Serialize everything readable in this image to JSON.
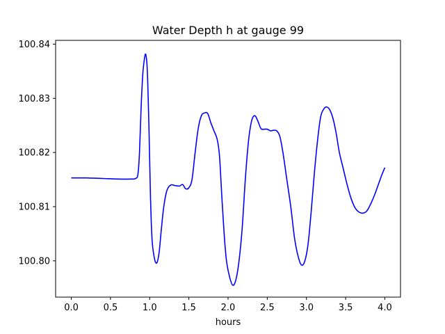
{
  "chart_data": {
    "type": "line",
    "title": "Water Depth h at gauge 99",
    "xlabel": "hours",
    "ylabel": "",
    "xlim": [
      -0.2,
      4.2
    ],
    "ylim": [
      100.7933,
      100.8407
    ],
    "xticks": [
      0.0,
      0.5,
      1.0,
      1.5,
      2.0,
      2.5,
      3.0,
      3.5,
      4.0
    ],
    "xtick_labels": [
      "0.0",
      "0.5",
      "1.0",
      "1.5",
      "2.0",
      "2.5",
      "3.0",
      "3.5",
      "4.0"
    ],
    "yticks": [
      100.8,
      100.81,
      100.82,
      100.83,
      100.84
    ],
    "ytick_labels": [
      "100.80",
      "100.81",
      "100.82",
      "100.83",
      "100.84"
    ],
    "grid": false,
    "series": [
      {
        "color": "#0000ff",
        "points": [
          [
            0.0,
            100.8153
          ],
          [
            0.2,
            100.8153
          ],
          [
            0.4,
            100.8152
          ],
          [
            0.6,
            100.8151
          ],
          [
            0.75,
            100.8151
          ],
          [
            0.82,
            100.8152
          ],
          [
            0.85,
            100.816
          ],
          [
            0.87,
            100.82
          ],
          [
            0.89,
            100.828
          ],
          [
            0.91,
            100.834
          ],
          [
            0.93,
            100.837
          ],
          [
            0.95,
            100.8381
          ],
          [
            0.97,
            100.835
          ],
          [
            0.99,
            100.825
          ],
          [
            1.01,
            100.812
          ],
          [
            1.03,
            100.804
          ],
          [
            1.06,
            100.8005
          ],
          [
            1.09,
            100.7996
          ],
          [
            1.12,
            100.8015
          ],
          [
            1.15,
            100.806
          ],
          [
            1.18,
            100.81
          ],
          [
            1.22,
            100.813
          ],
          [
            1.27,
            100.814
          ],
          [
            1.32,
            100.8139
          ],
          [
            1.38,
            100.8138
          ],
          [
            1.42,
            100.8141
          ],
          [
            1.46,
            100.8133
          ],
          [
            1.5,
            100.8135
          ],
          [
            1.54,
            100.815
          ],
          [
            1.58,
            100.82
          ],
          [
            1.62,
            100.8245
          ],
          [
            1.66,
            100.8268
          ],
          [
            1.7,
            100.8273
          ],
          [
            1.74,
            100.8272
          ],
          [
            1.78,
            100.8255
          ],
          [
            1.82,
            100.824
          ],
          [
            1.86,
            100.8225
          ],
          [
            1.89,
            100.8195
          ],
          [
            1.92,
            100.812
          ],
          [
            1.95,
            100.805
          ],
          [
            1.98,
            100.8
          ],
          [
            2.02,
            100.797
          ],
          [
            2.06,
            100.7955
          ],
          [
            2.1,
            100.7965
          ],
          [
            2.14,
            100.8
          ],
          [
            2.18,
            100.806
          ],
          [
            2.22,
            100.815
          ],
          [
            2.26,
            100.822
          ],
          [
            2.3,
            100.8258
          ],
          [
            2.34,
            100.8268
          ],
          [
            2.38,
            100.8258
          ],
          [
            2.42,
            100.8244
          ],
          [
            2.46,
            100.8243
          ],
          [
            2.5,
            100.8243
          ],
          [
            2.54,
            100.824
          ],
          [
            2.58,
            100.8241
          ],
          [
            2.62,
            100.824
          ],
          [
            2.66,
            100.823
          ],
          [
            2.7,
            100.82
          ],
          [
            2.75,
            100.815
          ],
          [
            2.8,
            100.81
          ],
          [
            2.85,
            100.804
          ],
          [
            2.9,
            100.8005
          ],
          [
            2.94,
            100.7992
          ],
          [
            2.98,
            100.8
          ],
          [
            3.02,
            100.803
          ],
          [
            3.06,
            100.809
          ],
          [
            3.1,
            100.816
          ],
          [
            3.14,
            100.822
          ],
          [
            3.18,
            100.8265
          ],
          [
            3.22,
            100.828
          ],
          [
            3.26,
            100.8284
          ],
          [
            3.3,
            100.8278
          ],
          [
            3.34,
            100.8262
          ],
          [
            3.38,
            100.8235
          ],
          [
            3.42,
            100.82
          ],
          [
            3.47,
            100.817
          ],
          [
            3.52,
            100.814
          ],
          [
            3.57,
            100.8115
          ],
          [
            3.62,
            100.8098
          ],
          [
            3.67,
            100.809
          ],
          [
            3.72,
            100.8088
          ],
          [
            3.77,
            100.8092
          ],
          [
            3.82,
            100.8105
          ],
          [
            3.87,
            100.8122
          ],
          [
            3.92,
            100.8142
          ],
          [
            3.96,
            100.8158
          ],
          [
            4.0,
            100.8172
          ]
        ]
      }
    ]
  }
}
